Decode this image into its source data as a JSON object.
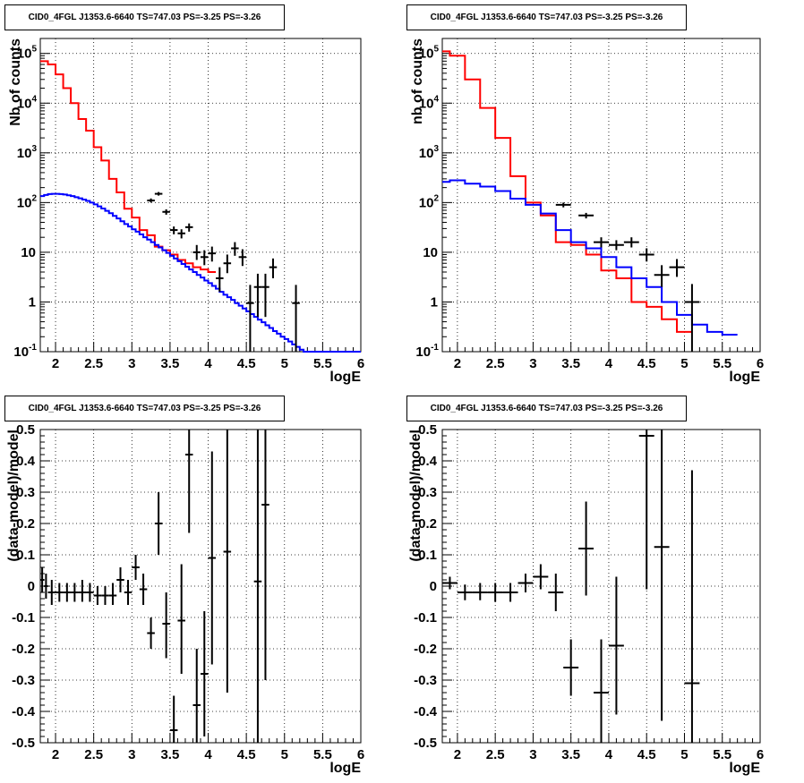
{
  "chart_data": [
    {
      "type": "line",
      "title": "CID0_4FGL J1353.6-6640 TS=747.03 PS=-3.25 PS=-3.26",
      "xlabel": "logE",
      "ylabel": "Nb of counts",
      "xlim": [
        1.8,
        6
      ],
      "ylim": [
        0.1,
        200000
      ],
      "yscale": "log",
      "grid": true,
      "xticks": [
        "2",
        "2.5",
        "3",
        "3.5",
        "4",
        "4.5",
        "5",
        "5.5",
        "6"
      ],
      "ytick_values": [
        0.1,
        1,
        10,
        100,
        1000,
        10000,
        100000
      ],
      "series": [
        {
          "color": "#ff0000",
          "bin_width": 0.1,
          "x_edges_start": 1.8,
          "values": [
            70000,
            60000,
            38000,
            20000,
            10000,
            4800,
            2800,
            1300,
            700,
            300,
            160,
            75,
            50,
            28,
            22,
            13,
            11,
            9,
            7,
            6,
            5,
            4.5,
            4
          ]
        },
        {
          "color": "#0000ff",
          "bin_width": 0.05,
          "x_edges_start": 1.8,
          "values": [
            135,
            142,
            148,
            150,
            150,
            148,
            145,
            140,
            135,
            128,
            122,
            115,
            108,
            100,
            92,
            84,
            76,
            68,
            61,
            54,
            48,
            42,
            37,
            33,
            29,
            26,
            23,
            20,
            18,
            16,
            14,
            12.5,
            11,
            9.7,
            8.5,
            7.5,
            6.6,
            5.8,
            5.1,
            4.5,
            4,
            3.5,
            3.1,
            2.7,
            2.4,
            2.1,
            1.85,
            1.6,
            1.4,
            1.25,
            1.1,
            0.95,
            0.84,
            0.74,
            0.65,
            0.57,
            0.5,
            0.44,
            0.39,
            0.34,
            0.3,
            0.26,
            0.23,
            0.2,
            0.18,
            0.16,
            0.14,
            0.125,
            0.11,
            0.1,
            0.1,
            0.1,
            0.1,
            0.1,
            0.1,
            0.1,
            0.1,
            0.1,
            0.1,
            0.1,
            0.1,
            0.1,
            0.1,
            0.1
          ]
        }
      ],
      "points": [
        {
          "x": 3.25,
          "y": 110,
          "xerr": 0.05,
          "ylo": 100,
          "yhi": 121
        },
        {
          "x": 3.35,
          "y": 150,
          "xerr": 0.05,
          "ylo": 138,
          "yhi": 163
        },
        {
          "x": 3.45,
          "y": 65,
          "xerr": 0.05,
          "ylo": 57,
          "yhi": 73
        },
        {
          "x": 3.55,
          "y": 28,
          "xerr": 0.05,
          "ylo": 23,
          "yhi": 33
        },
        {
          "x": 3.65,
          "y": 24,
          "xerr": 0.05,
          "ylo": 19,
          "yhi": 29
        },
        {
          "x": 3.75,
          "y": 32,
          "xerr": 0.05,
          "ylo": 26,
          "yhi": 38
        },
        {
          "x": 3.85,
          "y": 10,
          "xerr": 0.05,
          "ylo": 7,
          "yhi": 14
        },
        {
          "x": 3.95,
          "y": 8,
          "xerr": 0.05,
          "ylo": 5.5,
          "yhi": 11
        },
        {
          "x": 4.05,
          "y": 9.5,
          "xerr": 0.05,
          "ylo": 6.5,
          "yhi": 13
        },
        {
          "x": 4.15,
          "y": 3,
          "xerr": 0.05,
          "ylo": 1.6,
          "yhi": 5
        },
        {
          "x": 4.25,
          "y": 6,
          "xerr": 0.05,
          "ylo": 3.8,
          "yhi": 9
        },
        {
          "x": 4.35,
          "y": 12,
          "xerr": 0.05,
          "ylo": 8.5,
          "yhi": 16
        },
        {
          "x": 4.45,
          "y": 8,
          "xerr": 0.05,
          "ylo": 5.3,
          "yhi": 11.5
        },
        {
          "x": 4.55,
          "y": 0.95,
          "xerr": 0.05,
          "ylo": 0.1,
          "yhi": 2.2
        },
        {
          "x": 4.65,
          "y": 2,
          "xerr": 0.05,
          "ylo": 0.5,
          "yhi": 3.7
        },
        {
          "x": 4.75,
          "y": 2,
          "xerr": 0.05,
          "ylo": 0.5,
          "yhi": 3.7
        },
        {
          "x": 4.85,
          "y": 5,
          "xerr": 0.05,
          "ylo": 3,
          "yhi": 7.5
        },
        {
          "x": 5.15,
          "y": 0.95,
          "xerr": 0.05,
          "ylo": 0.1,
          "yhi": 2.2
        }
      ]
    },
    {
      "type": "line",
      "title": "CID0_4FGL J1353.6-6640 TS=747.03 PS=-3.25 PS=-3.26",
      "xlabel": "logE",
      "ylabel": "nb of counts",
      "xlim": [
        1.8,
        6
      ],
      "ylim": [
        0.1,
        200000
      ],
      "yscale": "log",
      "grid": true,
      "xticks": [
        "2",
        "2.5",
        "3",
        "3.5",
        "4",
        "4.5",
        "5",
        "5.5",
        "6"
      ],
      "ytick_values": [
        0.1,
        1,
        10,
        100,
        1000,
        10000,
        100000
      ],
      "series": [
        {
          "color": "#ff0000",
          "bin_width": 0.2,
          "x_edges_start": 1.8,
          "values": [
            110000,
            90000,
            30000,
            8000,
            2000,
            340,
            100,
            55,
            16,
            14,
            9,
            4.3,
            3,
            1,
            0.8,
            0.45,
            0.25
          ],
          "x_edges_custom": [
            1.8,
            1.9,
            2.1,
            2.3,
            2.5,
            2.7,
            2.9,
            3.1,
            3.3,
            3.5,
            3.7,
            3.9,
            4.1,
            4.3,
            4.5,
            4.7,
            4.9,
            5.1
          ]
        },
        {
          "color": "#0000ff",
          "bin_width": 0.2,
          "x_edges_start": 1.8,
          "values": [
            260,
            280,
            240,
            210,
            170,
            120,
            90,
            60,
            28,
            16,
            12,
            8,
            5,
            3,
            2,
            1,
            0.55,
            0.35,
            0.25,
            0.22
          ],
          "x_edges_custom": [
            1.8,
            1.9,
            2.1,
            2.3,
            2.5,
            2.7,
            2.9,
            3.1,
            3.3,
            3.5,
            3.7,
            3.9,
            4.1,
            4.3,
            4.5,
            4.7,
            4.9,
            5.1,
            5.3,
            5.5,
            5.7
          ]
        }
      ],
      "points": [
        {
          "x": 3.4,
          "y": 90,
          "xerr": 0.1,
          "ylo": 80,
          "yhi": 100
        },
        {
          "x": 3.7,
          "y": 55,
          "xerr": 0.1,
          "ylo": 48,
          "yhi": 62
        },
        {
          "x": 3.9,
          "y": 16,
          "xerr": 0.1,
          "ylo": 12.5,
          "yhi": 20
        },
        {
          "x": 4.1,
          "y": 14,
          "xerr": 0.1,
          "ylo": 11,
          "yhi": 17.5
        },
        {
          "x": 4.3,
          "y": 16,
          "xerr": 0.1,
          "ylo": 12.5,
          "yhi": 20
        },
        {
          "x": 4.5,
          "y": 9,
          "xerr": 0.1,
          "ylo": 6.5,
          "yhi": 12
        },
        {
          "x": 4.7,
          "y": 3.5,
          "xerr": 0.1,
          "ylo": 2,
          "yhi": 5.5
        },
        {
          "x": 4.9,
          "y": 5,
          "xerr": 0.1,
          "ylo": 3.2,
          "yhi": 7.3
        },
        {
          "x": 5.1,
          "y": 1,
          "xerr": 0.1,
          "ylo": 0.1,
          "yhi": 2.3
        }
      ]
    },
    {
      "type": "scatter",
      "title": "CID0_4FGL J1353.6-6640 TS=747.03 PS=-3.25 PS=-3.26",
      "xlabel": "logE",
      "ylabel": "(data-model)/model",
      "xlim": [
        1.8,
        6
      ],
      "ylim": [
        -0.5,
        0.5
      ],
      "grid": true,
      "xticks": [
        "2",
        "2.5",
        "3",
        "3.5",
        "4",
        "4.5",
        "5",
        "5.5",
        "6"
      ],
      "yticks": [
        "-0.5",
        "-0.4",
        "-0.3",
        "-0.2",
        "-0.1",
        "0",
        "0.1",
        "0.2",
        "0.3",
        "0.4",
        "0.5"
      ],
      "points": [
        {
          "x": 1.825,
          "y": 0.02,
          "xerr": 0.025,
          "ylo": -0.02,
          "yhi": 0.06
        },
        {
          "x": 1.875,
          "y": 0.0,
          "xerr": 0.025,
          "ylo": -0.04,
          "yhi": 0.04
        },
        {
          "x": 1.95,
          "y": -0.02,
          "xerr": 0.05,
          "ylo": -0.06,
          "yhi": 0.02
        },
        {
          "x": 2.05,
          "y": -0.02,
          "xerr": 0.05,
          "ylo": -0.05,
          "yhi": 0.01
        },
        {
          "x": 2.15,
          "y": -0.02,
          "xerr": 0.05,
          "ylo": -0.05,
          "yhi": 0.01
        },
        {
          "x": 2.25,
          "y": -0.02,
          "xerr": 0.05,
          "ylo": -0.05,
          "yhi": 0.01
        },
        {
          "x": 2.35,
          "y": -0.02,
          "xerr": 0.05,
          "ylo": -0.05,
          "yhi": 0.02
        },
        {
          "x": 2.45,
          "y": -0.02,
          "xerr": 0.05,
          "ylo": -0.05,
          "yhi": 0.01
        },
        {
          "x": 2.55,
          "y": -0.03,
          "xerr": 0.05,
          "ylo": -0.06,
          "yhi": 0.0
        },
        {
          "x": 2.65,
          "y": -0.03,
          "xerr": 0.05,
          "ylo": -0.06,
          "yhi": 0.0
        },
        {
          "x": 2.75,
          "y": -0.03,
          "xerr": 0.05,
          "ylo": -0.06,
          "yhi": 0.01
        },
        {
          "x": 2.85,
          "y": 0.02,
          "xerr": 0.05,
          "ylo": -0.02,
          "yhi": 0.06
        },
        {
          "x": 2.95,
          "y": -0.02,
          "xerr": 0.05,
          "ylo": -0.06,
          "yhi": 0.02
        },
        {
          "x": 3.05,
          "y": 0.06,
          "xerr": 0.05,
          "ylo": 0.02,
          "yhi": 0.1
        },
        {
          "x": 3.15,
          "y": -0.01,
          "xerr": 0.05,
          "ylo": -0.06,
          "yhi": 0.04
        },
        {
          "x": 3.25,
          "y": -0.15,
          "xerr": 0.05,
          "ylo": -0.2,
          "yhi": -0.1
        },
        {
          "x": 3.35,
          "y": 0.2,
          "xerr": 0.05,
          "ylo": 0.1,
          "yhi": 0.3
        },
        {
          "x": 3.45,
          "y": -0.12,
          "xerr": 0.05,
          "ylo": -0.23,
          "yhi": -0.02
        },
        {
          "x": 3.55,
          "y": -0.46,
          "xerr": 0.05,
          "ylo": -0.58,
          "yhi": -0.35
        },
        {
          "x": 3.65,
          "y": -0.11,
          "xerr": 0.05,
          "ylo": -0.28,
          "yhi": 0.07
        },
        {
          "x": 3.75,
          "y": 0.42,
          "xerr": 0.05,
          "ylo": 0.17,
          "yhi": 0.7
        },
        {
          "x": 3.85,
          "y": -0.38,
          "xerr": 0.05,
          "ylo": -0.55,
          "yhi": -0.2
        },
        {
          "x": 3.95,
          "y": -0.28,
          "xerr": 0.05,
          "ylo": -0.48,
          "yhi": -0.08
        },
        {
          "x": 4.05,
          "y": 0.09,
          "xerr": 0.05,
          "ylo": -0.25,
          "yhi": 0.43
        },
        {
          "x": 4.25,
          "y": 0.11,
          "xerr": 0.05,
          "ylo": -0.34,
          "yhi": 0.56
        },
        {
          "x": 4.65,
          "y": 0.015,
          "xerr": 0.05,
          "ylo": -0.7,
          "yhi": 0.8
        },
        {
          "x": 4.75,
          "y": 0.26,
          "xerr": 0.05,
          "ylo": -0.3,
          "yhi": 0.8
        }
      ]
    },
    {
      "type": "scatter",
      "title": "CID0_4FGL J1353.6-6640 TS=747.03 PS=-3.25 PS=-3.26",
      "xlabel": "logE",
      "ylabel": "(data-model)/model",
      "xlim": [
        1.8,
        6
      ],
      "ylim": [
        -0.5,
        0.5
      ],
      "grid": true,
      "xticks": [
        "2",
        "2.5",
        "3",
        "3.5",
        "4",
        "4.5",
        "5",
        "5.5",
        "6"
      ],
      "yticks": [
        "-0.5",
        "-0.4",
        "-0.3",
        "-0.2",
        "-0.1",
        "0",
        "0.1",
        "0.2",
        "0.3",
        "0.4",
        "0.5"
      ],
      "points": [
        {
          "x": 1.9,
          "y": 0.01,
          "xerr": 0.1,
          "ylo": -0.01,
          "yhi": 0.03
        },
        {
          "x": 2.1,
          "y": -0.02,
          "xerr": 0.1,
          "ylo": -0.045,
          "yhi": 0.005
        },
        {
          "x": 2.3,
          "y": -0.02,
          "xerr": 0.1,
          "ylo": -0.045,
          "yhi": 0.01
        },
        {
          "x": 2.5,
          "y": -0.02,
          "xerr": 0.1,
          "ylo": -0.05,
          "yhi": 0.01
        },
        {
          "x": 2.7,
          "y": -0.02,
          "xerr": 0.1,
          "ylo": -0.05,
          "yhi": 0.01
        },
        {
          "x": 2.9,
          "y": 0.01,
          "xerr": 0.1,
          "ylo": -0.02,
          "yhi": 0.04
        },
        {
          "x": 3.1,
          "y": 0.03,
          "xerr": 0.1,
          "ylo": -0.01,
          "yhi": 0.07
        },
        {
          "x": 3.3,
          "y": -0.02,
          "xerr": 0.1,
          "ylo": -0.08,
          "yhi": 0.04
        },
        {
          "x": 3.5,
          "y": -0.26,
          "xerr": 0.1,
          "ylo": -0.35,
          "yhi": -0.17
        },
        {
          "x": 3.7,
          "y": 0.12,
          "xerr": 0.1,
          "ylo": -0.03,
          "yhi": 0.27
        },
        {
          "x": 3.9,
          "y": -0.34,
          "xerr": 0.1,
          "ylo": -0.52,
          "yhi": -0.17
        },
        {
          "x": 4.1,
          "y": -0.19,
          "xerr": 0.1,
          "ylo": -0.41,
          "yhi": 0.03
        },
        {
          "x": 4.5,
          "y": 0.48,
          "xerr": 0.1,
          "ylo": -0.01,
          "yhi": 0.97
        },
        {
          "x": 4.7,
          "y": 0.125,
          "xerr": 0.1,
          "ylo": -0.43,
          "yhi": 0.68
        },
        {
          "x": 5.1,
          "y": -0.31,
          "xerr": 0.1,
          "ylo": -0.99,
          "yhi": 0.37
        }
      ]
    }
  ]
}
